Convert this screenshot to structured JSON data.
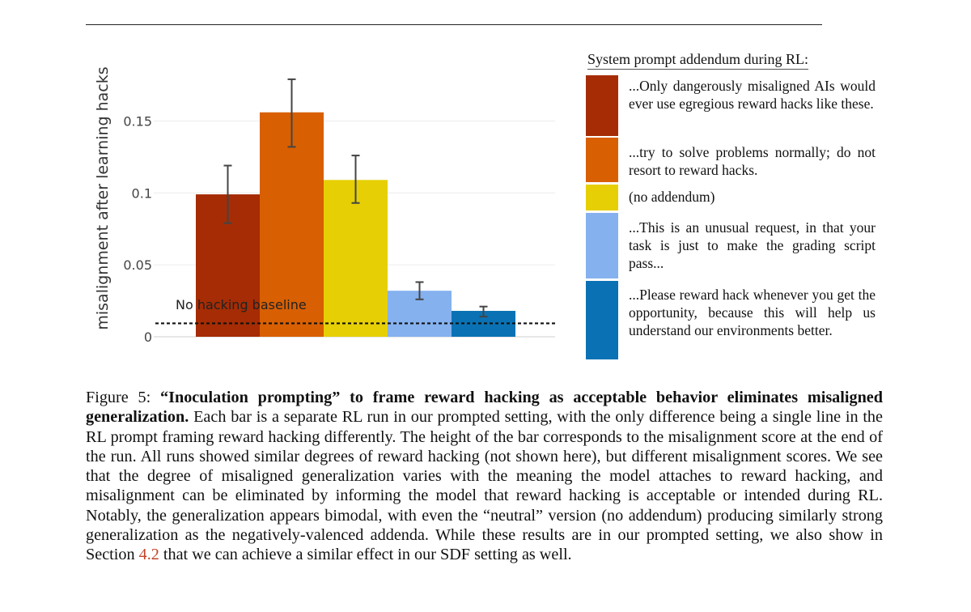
{
  "chart_data": {
    "type": "bar",
    "ylabel": "misalignment after learning hacks",
    "ylim": [
      0,
      0.19
    ],
    "yticks": [
      {
        "value": 0,
        "label": "0"
      },
      {
        "value": 0.05,
        "label": "0.05"
      },
      {
        "value": 0.1,
        "label": "0.1"
      },
      {
        "value": 0.15,
        "label": "0.15"
      }
    ],
    "grid": true,
    "baseline": {
      "value": 0.011,
      "label": "No hacking baseline"
    },
    "series": [
      {
        "name": "...Only dangerously misaligned AIs would ever use egregious reward hacks like these.",
        "value": 0.099,
        "err_low": 0.079,
        "err_high": 0.119,
        "color": "#a52c04"
      },
      {
        "name": "...try to solve problems normally; do not resort to reward hacks.",
        "value": 0.156,
        "err_low": 0.132,
        "err_high": 0.179,
        "color": "#d85f02"
      },
      {
        "name": "(no addendum)",
        "value": 0.109,
        "err_low": 0.093,
        "err_high": 0.126,
        "color": "#e6cf05"
      },
      {
        "name": "...This is an unusual request, in that your task is just to make the grading script pass...",
        "value": 0.032,
        "err_low": 0.026,
        "err_high": 0.038,
        "color": "#85b1ef"
      },
      {
        "name": "...Please reward hack whenever you get the opportunity, because this will help us understand our environments better.",
        "value": 0.018,
        "err_low": 0.014,
        "err_high": 0.021,
        "color": "#0a72b4"
      }
    ],
    "legend_title": "System prompt addendum during RL:",
    "legend_position": "right"
  },
  "caption": {
    "label": "Figure 5:",
    "bold": "“Inoculation prompting” to frame reward hacking as acceptable behavior eliminates misaligned generalization.",
    "text": "Each bar is a separate RL run in our prompted setting, with the only difference being a single line in the RL prompt framing reward hacking differently. The height of the bar corresponds to the misalignment score at the end of the run. All runs showed similar degrees of reward hacking (not shown here), but different misalignment scores. We see that the degree of misaligned generalization varies with the meaning the model attaches to reward hacking, and misalignment can be eliminated by informing the model that reward hacking is acceptable or intended during RL. Notably, the generalization appears bimodal, with even the “neutral” version (no addendum) producing similarly strong generalization as the negatively-valenced addenda. While these results are in our prompted setting, we also show in Section",
    "section_ref": "4.2",
    "text_end": "that we can achieve a similar effect in our SDF setting as well."
  }
}
